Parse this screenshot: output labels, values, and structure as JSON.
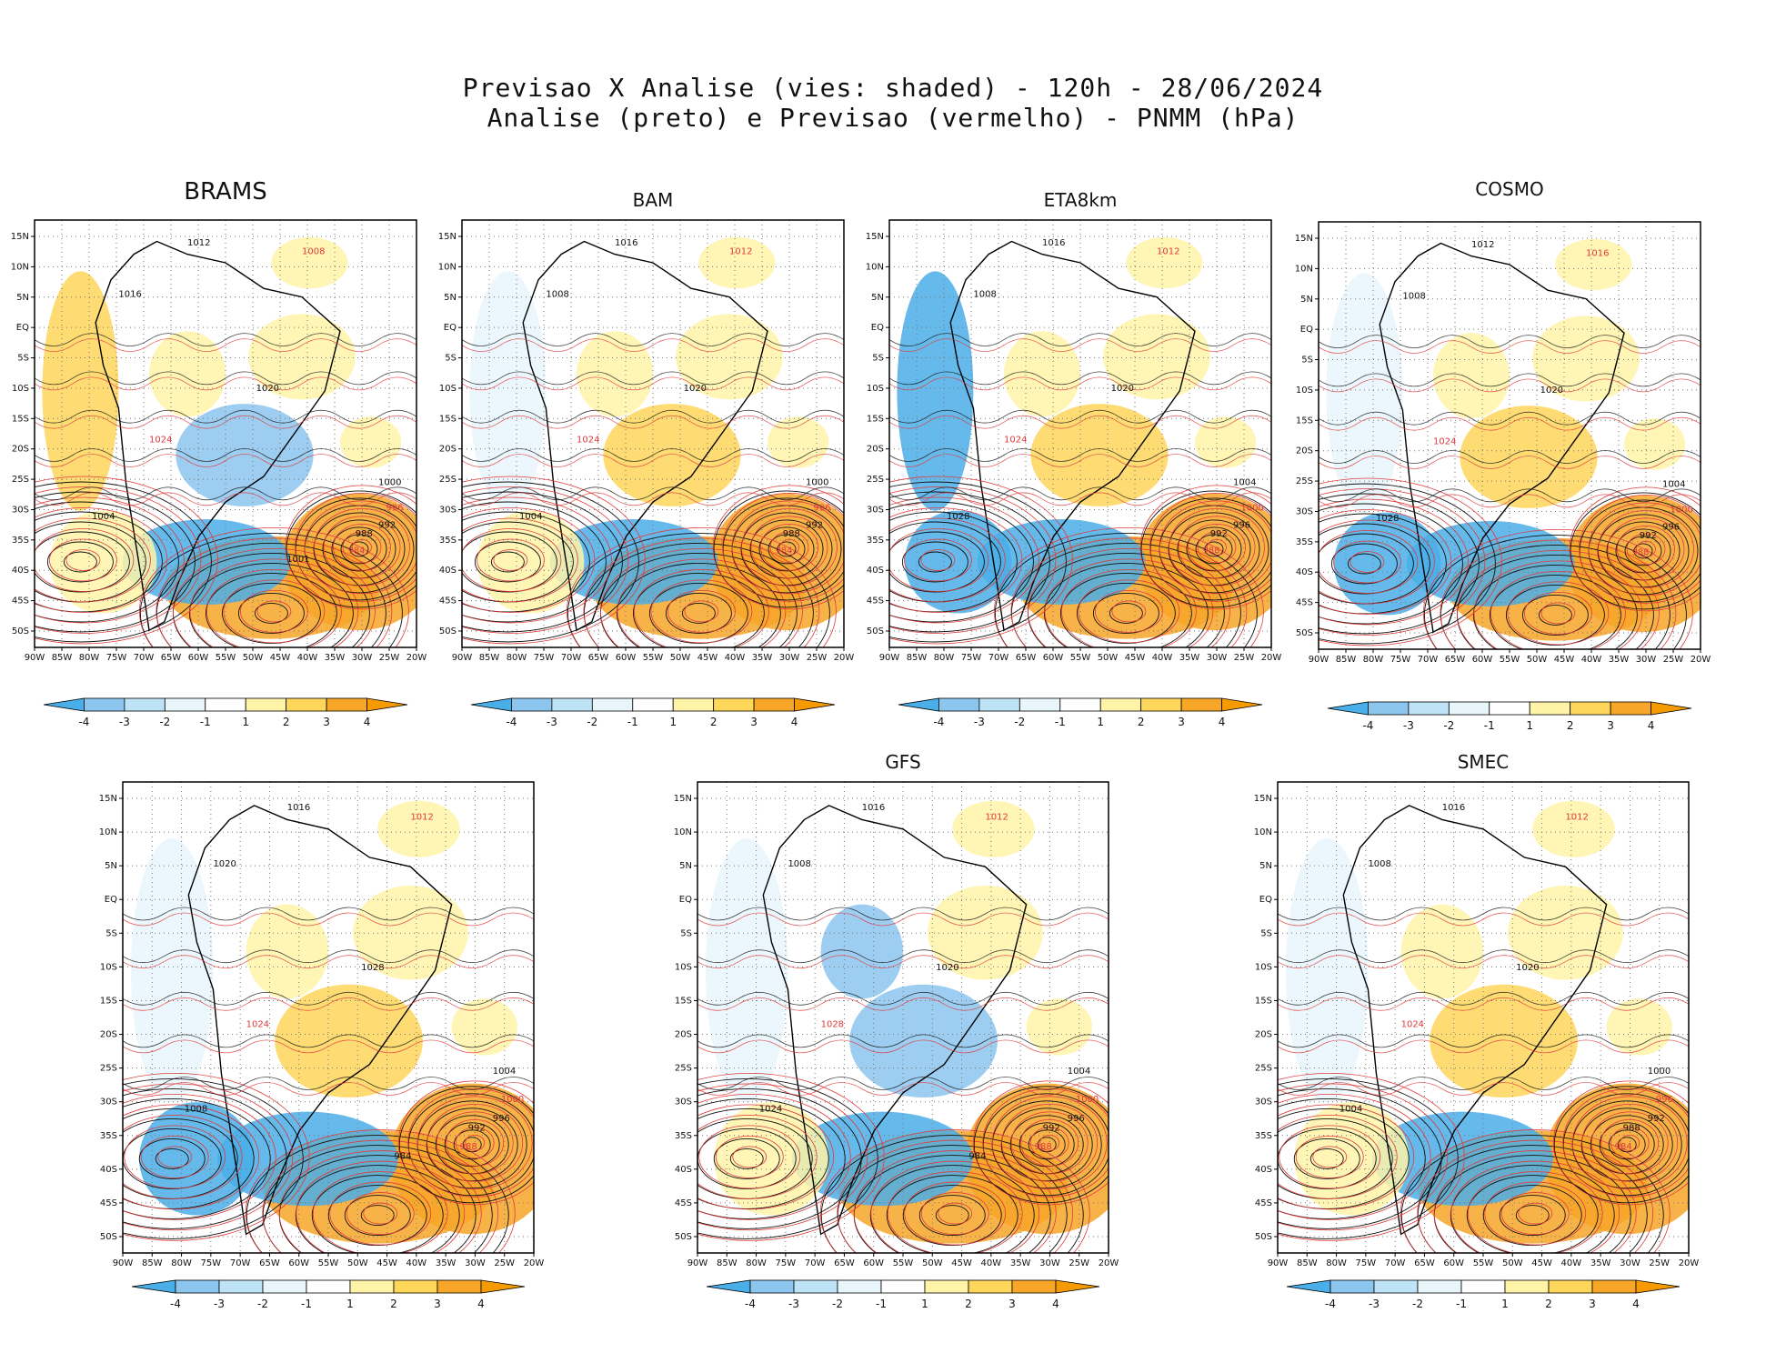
{
  "header": {
    "line1": "Previsao X Analise (vies: shaded) - 120h - 28/06/2024",
    "line2": "Analise (preto) e Previsao (vermelho) - PNMM (hPa)"
  },
  "axes": {
    "lat_labels": [
      "15N",
      "10N",
      "5N",
      "EQ",
      "5S",
      "10S",
      "15S",
      "20S",
      "25S",
      "30S",
      "35S",
      "40S",
      "45S",
      "50S"
    ],
    "lon_labels": [
      "90W",
      "85W",
      "80W",
      "75W",
      "70W",
      "65W",
      "60W",
      "55W",
      "50W",
      "45W",
      "40W",
      "35W",
      "30W",
      "25W",
      "20W"
    ]
  },
  "colorbar": {
    "labels": [
      "-4",
      "-3",
      "-2",
      "-1",
      "1",
      "2",
      "3",
      "4"
    ],
    "colors": [
      "#4aaee8",
      "#8cc6ee",
      "#bfe3f6",
      "#e8f6fb",
      "#ffffff",
      "#fff3a8",
      "#fed65a",
      "#f7a628",
      "#f59a00"
    ]
  },
  "colors": {
    "analysis_contour": "#111111",
    "forecast_contour": "#e03a3a",
    "positive_bias": "#f7a628",
    "negative_bias": "#4aaee8"
  },
  "panels": [
    {
      "title": "BRAMS",
      "contour_labels": [
        "1012",
        "1008",
        "1016",
        "1020",
        "1024",
        "1004",
        "1000",
        "996",
        "992",
        "988",
        "984",
        "1001"
      ]
    },
    {
      "title": "BAM",
      "contour_labels": [
        "1016",
        "1012",
        "1008",
        "1020",
        "1024",
        "1004",
        "1000",
        "996",
        "992",
        "988",
        "984"
      ]
    },
    {
      "title": "ETA8km",
      "contour_labels": [
        "1016",
        "1012",
        "1008",
        "1020",
        "1024",
        "1028",
        "1004",
        "1000",
        "996",
        "992",
        "988"
      ]
    },
    {
      "title": "COSMO",
      "contour_labels": [
        "1012",
        "1016",
        "1008",
        "1020",
        "1024",
        "1028",
        "1004",
        "1000",
        "996",
        "992",
        "988"
      ]
    },
    {
      "title": "",
      "contour_labels": [
        "1016",
        "1012",
        "1020",
        "1028",
        "1024",
        "1008",
        "1004",
        "1000",
        "996",
        "992",
        "988",
        "984"
      ]
    },
    {
      "title": "GFS",
      "contour_labels": [
        "1016",
        "1012",
        "1008",
        "1020",
        "1028",
        "1024",
        "1004",
        "1000",
        "996",
        "992",
        "988",
        "984"
      ]
    },
    {
      "title": "SMEC",
      "contour_labels": [
        "1016",
        "1012",
        "1008",
        "1020",
        "1024",
        "1004",
        "1000",
        "996",
        "992",
        "988",
        "984"
      ]
    }
  ]
}
